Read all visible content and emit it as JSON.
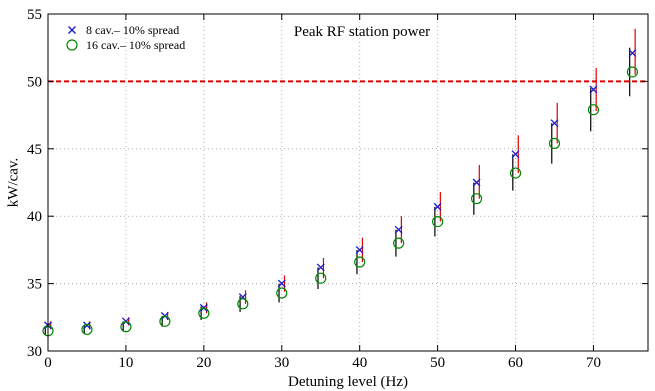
{
  "chart_data": {
    "type": "scatter",
    "title": "Peak RF station power",
    "xlabel": "Detuning  level (Hz)",
    "ylabel": "kW/cav.",
    "xlim": [
      0,
      77
    ],
    "ylim": [
      30,
      55
    ],
    "xticks": [
      0,
      10,
      20,
      30,
      40,
      50,
      60,
      70
    ],
    "yticks": [
      30,
      35,
      40,
      45,
      50,
      55
    ],
    "grid": true,
    "legend_position": "top-left",
    "reference_line": {
      "y": 50,
      "color": "#e00000",
      "style": "dashed"
    },
    "x": [
      0,
      5,
      10,
      15,
      20,
      25,
      30,
      35,
      40,
      45,
      50,
      55,
      60,
      65,
      70,
      75
    ],
    "series": [
      {
        "name": "8 cav.– 10% spread",
        "marker": "x",
        "color": "#1a1acc",
        "error_color": "#e00000",
        "y": [
          31.9,
          31.9,
          32.2,
          32.6,
          33.2,
          34.0,
          35.0,
          36.2,
          37.5,
          39.0,
          40.7,
          42.5,
          44.6,
          46.9,
          49.4,
          52.1
        ],
        "err_low": [
          31.6,
          31.6,
          31.9,
          32.3,
          32.8,
          33.5,
          34.4,
          35.4,
          36.6,
          38.0,
          39.6,
          41.3,
          43.2,
          45.4,
          47.8,
          50.5
        ],
        "err_high": [
          32.2,
          32.2,
          32.5,
          32.9,
          33.6,
          34.5,
          35.6,
          36.9,
          38.4,
          40.0,
          41.8,
          43.8,
          46.0,
          48.4,
          51.0,
          53.9
        ]
      },
      {
        "name": "16 cav.– 10% spread",
        "marker": "o",
        "color": "#008800",
        "error_color": "#000000",
        "y": [
          31.5,
          31.6,
          31.8,
          32.2,
          32.8,
          33.5,
          34.3,
          35.4,
          36.6,
          38.0,
          39.6,
          41.3,
          43.2,
          45.4,
          47.9,
          50.7
        ],
        "err_low": [
          31.2,
          31.3,
          31.5,
          31.8,
          32.3,
          32.9,
          33.6,
          34.6,
          35.7,
          37.0,
          38.5,
          40.1,
          41.9,
          43.9,
          46.3,
          48.9
        ],
        "err_high": [
          31.8,
          31.9,
          32.2,
          32.6,
          33.3,
          34.1,
          35.0,
          36.2,
          37.5,
          39.0,
          40.7,
          42.5,
          44.6,
          46.9,
          49.5,
          52.5
        ]
      }
    ]
  }
}
